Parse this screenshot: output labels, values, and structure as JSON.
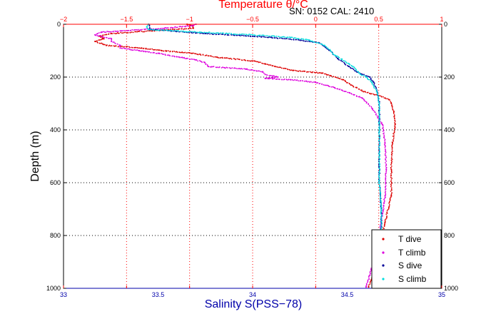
{
  "annotation": "SN: 0152  CAL: 2410",
  "colors": {
    "temperature_axis": "#ff0000",
    "salinity_axis": "#0000aa",
    "grid_temperature": "#ff0000",
    "grid_depth": "#000000",
    "t_dive": "#dd0000",
    "t_climb": "#dd00dd",
    "s_dive": "#000099",
    "s_climb": "#00dddd"
  },
  "chart_data": {
    "type": "scatter",
    "title": "Temperature θ/°C",
    "xlabel": "Salinity S(PSS−78)",
    "ylabel": "Depth (m)",
    "grid": true,
    "y_reversed": true,
    "legend_position": "bottom-right",
    "temperature_axis": {
      "label": "Temperature θ/°C",
      "position": "top",
      "range": [
        -2,
        1
      ],
      "ticks": [
        -2,
        -1.5,
        -1,
        -0.5,
        0,
        0.5,
        1
      ],
      "tick_labels": [
        "−2",
        "−1.5",
        "−1",
        "−0.5",
        "0",
        "0.5",
        "1"
      ]
    },
    "salinity_axis": {
      "label": "Salinity S(PSS−78)",
      "position": "bottom",
      "range": [
        33,
        35
      ],
      "ticks": [
        33,
        33.5,
        34,
        34.5,
        35
      ],
      "tick_labels": [
        "33",
        "33.5",
        "34",
        "34.5",
        "35"
      ]
    },
    "depth_axis": {
      "label": "Depth (m)",
      "range": [
        0,
        1000
      ],
      "ticks": [
        0,
        200,
        400,
        600,
        800,
        1000
      ],
      "tick_labels": [
        "0",
        "200",
        "400",
        "600",
        "800",
        "1000"
      ]
    },
    "series": [
      {
        "name": "T dive",
        "axis": "temperature",
        "color": "#dd0000",
        "depth": [
          0,
          5,
          15,
          25,
          35,
          45,
          55,
          65,
          80,
          90,
          100,
          110,
          125,
          140,
          150,
          160,
          175,
          185,
          195,
          210,
          230,
          255,
          270,
          285,
          300,
          330,
          380,
          450,
          550,
          650,
          750,
          850,
          950,
          995
        ],
        "values": [
          -1.02,
          -0.98,
          -0.97,
          -1.3,
          -1.62,
          -1.72,
          -1.68,
          -1.75,
          -1.66,
          -1.38,
          -1.22,
          -0.98,
          -0.78,
          -0.48,
          -0.4,
          -0.32,
          -0.18,
          0.05,
          0.12,
          0.22,
          0.28,
          0.38,
          0.5,
          0.58,
          0.6,
          0.62,
          0.63,
          0.61,
          0.6,
          0.6,
          0.55,
          0.5,
          0.45,
          0.42
        ]
      },
      {
        "name": "T climb",
        "axis": "temperature",
        "color": "#dd00dd",
        "depth": [
          0,
          5,
          15,
          30,
          40,
          55,
          65,
          80,
          90,
          100,
          110,
          125,
          135,
          145,
          160,
          170,
          180,
          190,
          200,
          205,
          210,
          220,
          240,
          260,
          280,
          320,
          380,
          450,
          550,
          650,
          750,
          850,
          950,
          995
        ],
        "values": [
          -0.95,
          -0.97,
          -1.2,
          -1.7,
          -1.75,
          -1.62,
          -1.62,
          -1.55,
          -1.55,
          -1.4,
          -1.25,
          -1.08,
          -0.95,
          -0.88,
          -0.85,
          -0.55,
          -0.42,
          -0.4,
          -0.3,
          -0.4,
          -0.2,
          0.0,
          0.15,
          0.27,
          0.37,
          0.45,
          0.53,
          0.55,
          0.56,
          0.55,
          0.52,
          0.48,
          0.43,
          0.4
        ]
      },
      {
        "name": "S dive",
        "axis": "salinity",
        "color": "#000099",
        "depth": [
          0,
          20,
          35,
          50,
          60,
          70,
          100,
          130,
          160,
          180,
          190,
          200,
          220,
          260,
          300,
          350,
          400,
          500,
          600,
          700,
          800,
          900,
          995
        ],
        "values": [
          33.45,
          33.46,
          33.75,
          34.1,
          34.25,
          34.35,
          34.41,
          34.45,
          34.51,
          34.55,
          34.58,
          34.62,
          34.64,
          34.66,
          34.67,
          34.67,
          34.67,
          34.67,
          34.67,
          34.68,
          34.68,
          34.68,
          34.68
        ]
      },
      {
        "name": "S climb",
        "axis": "salinity",
        "color": "#00dddd",
        "depth": [
          0,
          10,
          20,
          30,
          40,
          50,
          60,
          80,
          120,
          150,
          160,
          190,
          200,
          220,
          260,
          300,
          350,
          400,
          500,
          600,
          700,
          800,
          900,
          995
        ],
        "values": [
          33.45,
          33.44,
          33.45,
          33.72,
          34.0,
          34.2,
          34.3,
          34.38,
          34.44,
          34.51,
          34.53,
          34.57,
          34.6,
          34.63,
          34.66,
          34.67,
          34.67,
          34.67,
          34.67,
          34.67,
          34.68,
          34.68,
          34.68,
          34.68
        ]
      }
    ]
  }
}
